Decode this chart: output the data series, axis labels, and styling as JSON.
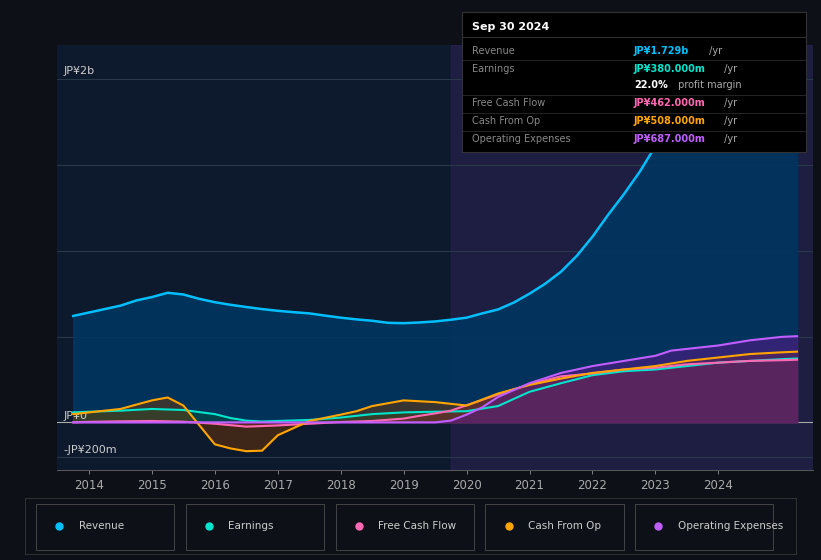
{
  "bg_color": "#0d1117",
  "plot_bg_color": "#0d1a2e",
  "title_box": {
    "date": "Sep 30 2024",
    "rows": [
      {
        "label": "Revenue",
        "value": "JP¥1.729b",
        "unit": " /yr",
        "value_color": "#00bfff"
      },
      {
        "label": "Earnings",
        "value": "JP¥380.000m",
        "unit": " /yr",
        "value_color": "#00e5cc"
      },
      {
        "label": "",
        "value": "22.0%",
        "unit": " profit margin",
        "value_color": "#ffffff"
      },
      {
        "label": "Free Cash Flow",
        "value": "JP¥462.000m",
        "unit": " /yr",
        "value_color": "#ff69b4"
      },
      {
        "label": "Cash From Op",
        "value": "JP¥508.000m",
        "unit": " /yr",
        "value_color": "#ffa500"
      },
      {
        "label": "Operating Expenses",
        "value": "JP¥687.000m",
        "unit": " /yr",
        "value_color": "#bf5fff"
      }
    ]
  },
  "ylabel_top": "JP¥2b",
  "ylabel_zero": "JP¥0",
  "ylabel_neg": "-JP¥200m",
  "xlim": [
    2013.5,
    2025.5
  ],
  "ylim": [
    -280,
    2200
  ],
  "xticks": [
    2014,
    2015,
    2016,
    2017,
    2018,
    2019,
    2020,
    2021,
    2022,
    2023,
    2024
  ],
  "shade_start_x": 2019.75,
  "gridlines": [
    -200,
    0,
    500,
    1000,
    1500,
    2000
  ],
  "revenue_x": [
    2013.75,
    2014.0,
    2014.25,
    2014.5,
    2014.75,
    2015.0,
    2015.25,
    2015.5,
    2015.75,
    2016.0,
    2016.25,
    2016.5,
    2016.75,
    2017.0,
    2017.25,
    2017.5,
    2017.75,
    2018.0,
    2018.25,
    2018.5,
    2018.75,
    2019.0,
    2019.25,
    2019.5,
    2019.75,
    2020.0,
    2020.25,
    2020.5,
    2020.75,
    2021.0,
    2021.25,
    2021.5,
    2021.75,
    2022.0,
    2022.25,
    2022.5,
    2022.75,
    2023.0,
    2023.25,
    2023.5,
    2023.75,
    2024.0,
    2024.25,
    2024.5,
    2024.75,
    2025.0,
    2025.25
  ],
  "revenue_y": [
    620,
    640,
    660,
    680,
    710,
    730,
    755,
    745,
    720,
    700,
    685,
    672,
    660,
    650,
    642,
    635,
    622,
    610,
    600,
    592,
    580,
    578,
    582,
    588,
    598,
    610,
    635,
    658,
    698,
    750,
    808,
    878,
    970,
    1082,
    1210,
    1330,
    1460,
    1610,
    1710,
    1755,
    1780,
    1800,
    1802,
    1800,
    1792,
    1790,
    1788
  ],
  "earnings_x": [
    2013.75,
    2014.0,
    2014.5,
    2015.0,
    2015.5,
    2016.0,
    2016.25,
    2016.5,
    2016.75,
    2017.0,
    2017.5,
    2018.0,
    2018.5,
    2019.0,
    2019.5,
    2020.0,
    2020.5,
    2021.0,
    2021.5,
    2022.0,
    2022.5,
    2023.0,
    2023.5,
    2024.0,
    2024.5,
    2025.0,
    2025.25
  ],
  "earnings_y": [
    58,
    62,
    68,
    78,
    72,
    48,
    25,
    10,
    5,
    8,
    14,
    28,
    48,
    58,
    62,
    65,
    95,
    178,
    228,
    275,
    298,
    308,
    328,
    348,
    358,
    368,
    372
  ],
  "fcf_x": [
    2013.75,
    2014.0,
    2014.5,
    2015.0,
    2015.5,
    2016.0,
    2016.5,
    2017.0,
    2017.5,
    2018.0,
    2018.5,
    2019.0,
    2019.25,
    2019.5,
    2019.75,
    2020.0,
    2020.5,
    2021.0,
    2021.5,
    2022.0,
    2022.5,
    2023.0,
    2023.5,
    2024.0,
    2024.5,
    2025.0,
    2025.25
  ],
  "fcf_y": [
    0,
    3,
    6,
    8,
    4,
    -8,
    -25,
    -18,
    -8,
    2,
    8,
    22,
    38,
    52,
    68,
    100,
    162,
    222,
    268,
    285,
    308,
    318,
    338,
    348,
    358,
    362,
    365
  ],
  "cfo_x": [
    2013.75,
    2014.0,
    2014.5,
    2015.0,
    2015.25,
    2015.5,
    2016.0,
    2016.25,
    2016.5,
    2016.75,
    2017.0,
    2017.5,
    2018.0,
    2018.25,
    2018.5,
    2019.0,
    2019.5,
    2020.0,
    2020.5,
    2021.0,
    2021.5,
    2022.0,
    2022.5,
    2023.0,
    2023.5,
    2024.0,
    2024.5,
    2025.0,
    2025.25
  ],
  "cfo_y": [
    48,
    58,
    78,
    128,
    145,
    98,
    -128,
    -152,
    -168,
    -165,
    -75,
    8,
    45,
    65,
    95,
    128,
    118,
    98,
    168,
    218,
    255,
    288,
    308,
    328,
    358,
    378,
    398,
    408,
    412
  ],
  "opex_x": [
    2013.75,
    2014.0,
    2014.5,
    2015.0,
    2015.5,
    2016.0,
    2016.5,
    2017.0,
    2017.5,
    2018.0,
    2018.5,
    2019.0,
    2019.5,
    2019.75,
    2020.0,
    2020.25,
    2020.5,
    2021.0,
    2021.5,
    2022.0,
    2022.5,
    2023.0,
    2023.25,
    2023.5,
    2024.0,
    2024.5,
    2025.0,
    2025.25
  ],
  "opex_y": [
    0,
    0,
    0,
    0,
    0,
    0,
    0,
    0,
    0,
    0,
    0,
    0,
    0,
    10,
    45,
    88,
    148,
    228,
    288,
    328,
    358,
    388,
    418,
    428,
    448,
    478,
    498,
    502
  ],
  "rev_color": "#00bfff",
  "earn_color": "#00e5cc",
  "fcf_color": "#ff69b4",
  "cfo_color": "#ffa500",
  "opex_color": "#bf5fff",
  "legend": [
    {
      "label": "Revenue",
      "color": "#00bfff"
    },
    {
      "label": "Earnings",
      "color": "#00e5cc"
    },
    {
      "label": "Free Cash Flow",
      "color": "#ff69b4"
    },
    {
      "label": "Cash From Op",
      "color": "#ffa500"
    },
    {
      "label": "Operating Expenses",
      "color": "#bf5fff"
    }
  ]
}
